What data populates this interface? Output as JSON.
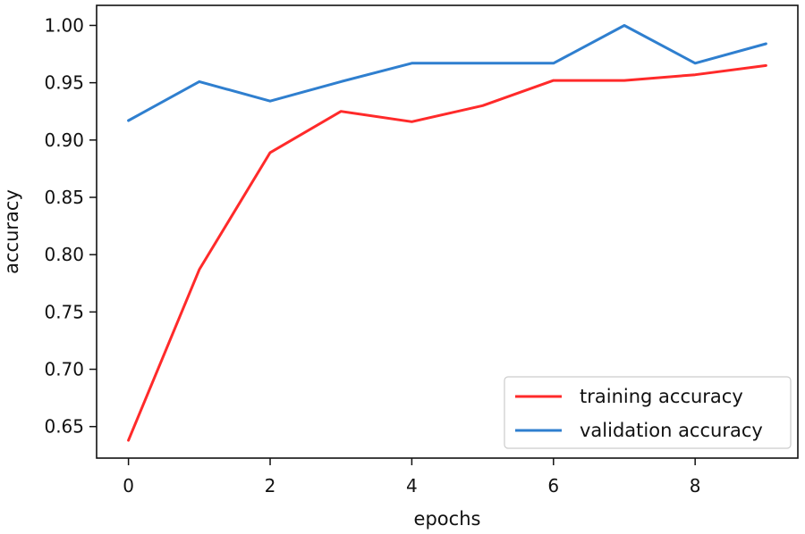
{
  "chart_data": {
    "type": "line",
    "title": "",
    "xlabel": "epochs",
    "ylabel": "accuracy",
    "xlim": [
      -0.45,
      9.45
    ],
    "ylim": [
      0.6225,
      1.0175
    ],
    "x": [
      0,
      1,
      2,
      3,
      4,
      5,
      6,
      7,
      8,
      9
    ],
    "xticks": [
      0,
      2,
      4,
      6,
      8
    ],
    "xtick_labels": [
      "0",
      "2",
      "4",
      "6",
      "8"
    ],
    "yticks": [
      0.65,
      0.7,
      0.75,
      0.8,
      0.85,
      0.9,
      0.95,
      1.0
    ],
    "ytick_labels": [
      "0.65",
      "0.70",
      "0.75",
      "0.80",
      "0.85",
      "0.90",
      "0.95",
      "1.00"
    ],
    "grid": false,
    "legend_position": "bottom-right",
    "series": [
      {
        "name": "training accuracy",
        "color": "#ff2a2a",
        "values": [
          0.638,
          0.787,
          0.889,
          0.925,
          0.916,
          0.93,
          0.952,
          0.952,
          0.957,
          0.965
        ]
      },
      {
        "name": "validation accuracy",
        "color": "#2f7fcf",
        "values": [
          0.917,
          0.951,
          0.934,
          0.951,
          0.967,
          0.967,
          0.967,
          1.0,
          0.967,
          0.984
        ]
      }
    ]
  }
}
